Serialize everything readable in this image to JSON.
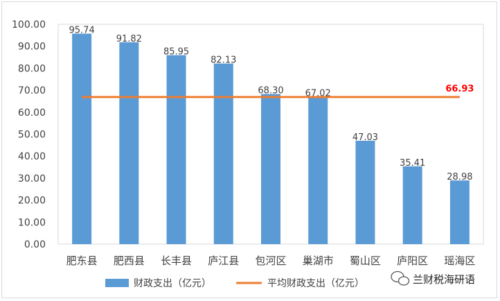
{
  "chart_data": {
    "type": "bar",
    "categories": [
      "肥东县",
      "肥西县",
      "长丰县",
      "庐江县",
      "包河区",
      "巢湖市",
      "蜀山区",
      "庐阳区",
      "瑶海区"
    ],
    "series": [
      {
        "name": "财政支出（亿元）",
        "type": "bar",
        "values": [
          95.74,
          91.82,
          85.95,
          82.13,
          68.3,
          67.02,
          47.03,
          35.41,
          28.98
        ],
        "value_labels": [
          "95.74",
          "91.82",
          "85.95",
          "82.13",
          "68.30",
          "67.02",
          "47.03",
          "35.41",
          "28.98"
        ],
        "color": "#5b9bd5"
      },
      {
        "name": "平均财政支出（亿元）",
        "type": "line",
        "values": [
          66.93,
          66.93,
          66.93,
          66.93,
          66.93,
          66.93,
          66.93,
          66.93,
          66.93
        ],
        "color": "#ed7d31"
      }
    ],
    "average_label": "66.93",
    "average_label_color": "#ff0000",
    "ylim": [
      0,
      100
    ],
    "yticks": [
      "0.00",
      "10.00",
      "20.00",
      "30.00",
      "40.00",
      "50.00",
      "60.00",
      "70.00",
      "80.00",
      "90.00",
      "100.00"
    ],
    "grid": false,
    "legend_position": "bottom"
  },
  "watermark": {
    "text": "兰财税海研语",
    "icon": "wechat-icon"
  }
}
